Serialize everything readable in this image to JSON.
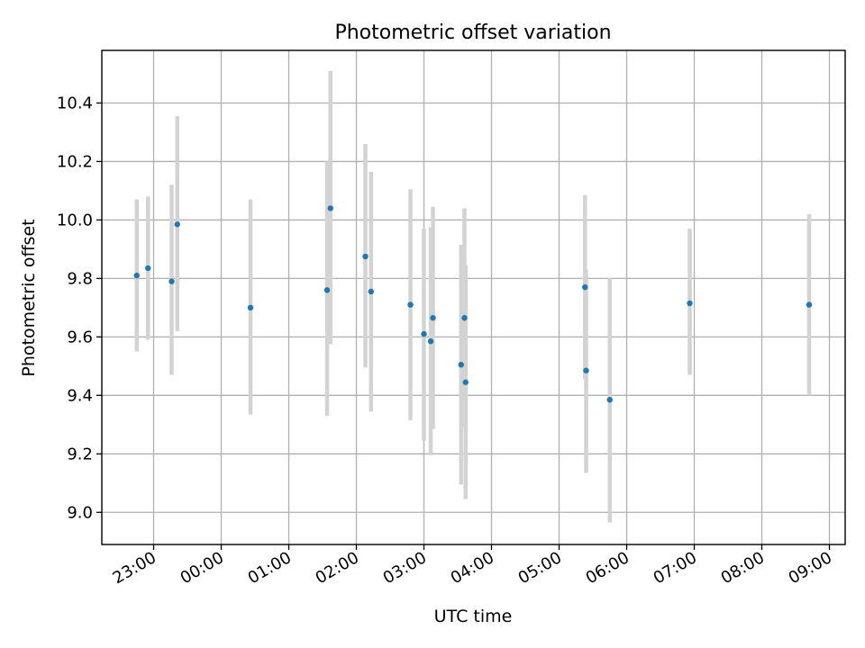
{
  "chart_data": {
    "type": "scatter",
    "title": "Photometric offset variation",
    "xlabel": "UTC time",
    "ylabel": "Photometric offset",
    "x_unit": "UTC time of day",
    "x_ticks": [
      "23:00",
      "00:00",
      "01:00",
      "02:00",
      "03:00",
      "04:00",
      "05:00",
      "06:00",
      "07:00",
      "08:00",
      "09:00"
    ],
    "y_ticks": [
      "9.0",
      "9.2",
      "9.4",
      "9.6",
      "9.8",
      "10.0",
      "10.2",
      "10.4"
    ],
    "xlim": [
      "22:14",
      "09:14"
    ],
    "ylim": [
      8.89,
      10.58
    ],
    "grid": true,
    "error_bar_color": "#d3d3d3",
    "point_color": "#1f77b4",
    "series": [
      {
        "points": [
          {
            "x": "22:45",
            "y": 9.81,
            "ylow": 9.55,
            "yhigh": 10.07
          },
          {
            "x": "22:55",
            "y": 9.835,
            "ylow": 9.59,
            "yhigh": 10.08
          },
          {
            "x": "23:16",
            "y": 9.79,
            "ylow": 9.47,
            "yhigh": 10.12
          },
          {
            "x": "23:21",
            "y": 9.985,
            "ylow": 9.62,
            "yhigh": 10.355
          },
          {
            "x": "00:26",
            "y": 9.7,
            "ylow": 9.335,
            "yhigh": 10.07
          },
          {
            "x": "01:34",
            "y": 9.76,
            "ylow": 9.33,
            "yhigh": 10.2
          },
          {
            "x": "01:37",
            "y": 10.04,
            "ylow": 9.575,
            "yhigh": 10.51
          },
          {
            "x": "02:08",
            "y": 9.875,
            "ylow": 9.495,
            "yhigh": 10.26
          },
          {
            "x": "02:13",
            "y": 9.755,
            "ylow": 9.345,
            "yhigh": 10.165
          },
          {
            "x": "02:48",
            "y": 9.71,
            "ylow": 9.315,
            "yhigh": 10.105
          },
          {
            "x": "03:00",
            "y": 9.61,
            "ylow": 9.245,
            "yhigh": 9.97
          },
          {
            "x": "03:06",
            "y": 9.585,
            "ylow": 9.195,
            "yhigh": 9.975
          },
          {
            "x": "03:08",
            "y": 9.665,
            "ylow": 9.285,
            "yhigh": 10.045
          },
          {
            "x": "03:33",
            "y": 9.505,
            "ylow": 9.095,
            "yhigh": 9.915
          },
          {
            "x": "03:36",
            "y": 9.665,
            "ylow": 9.29,
            "yhigh": 10.04
          },
          {
            "x": "03:37",
            "y": 9.445,
            "ylow": 9.045,
            "yhigh": 9.845
          },
          {
            "x": "05:23",
            "y": 9.77,
            "ylow": 9.455,
            "yhigh": 10.085
          },
          {
            "x": "05:24",
            "y": 9.485,
            "ylow": 9.135,
            "yhigh": 9.83
          },
          {
            "x": "05:45",
            "y": 9.385,
            "ylow": 8.965,
            "yhigh": 9.8
          },
          {
            "x": "06:56",
            "y": 9.715,
            "ylow": 9.47,
            "yhigh": 9.97
          },
          {
            "x": "08:42",
            "y": 9.71,
            "ylow": 9.4,
            "yhigh": 10.02
          }
        ]
      }
    ]
  }
}
